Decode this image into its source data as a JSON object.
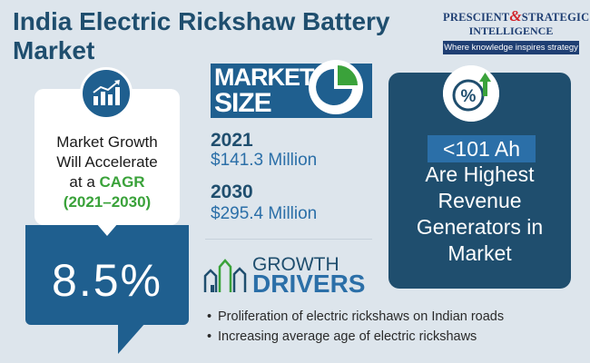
{
  "title": "India Electric Rickshaw Battery Market",
  "logo": {
    "line1_a": "PRESCIENT",
    "line1_amp": "&",
    "line1_b": "STRATEGIC",
    "line2": "INTELLIGENCE",
    "tagline": "Where knowledge inspires strategy"
  },
  "cagr": {
    "icon": "rising-chart-icon",
    "text_line1": "Market Growth",
    "text_line2": "Will Accelerate",
    "text_line3_prefix": "at a",
    "text_line3_highlight": "CAGR",
    "period": "(2021–2030)",
    "value": "8.5%"
  },
  "market_size": {
    "label_line1": "MARKET",
    "label_line2": "SIZE",
    "icon": "pie-chart-icon",
    "entries": [
      {
        "year": "2021",
        "value": "$141.3 Million"
      },
      {
        "year": "2030",
        "value": "$295.4 Million"
      }
    ]
  },
  "growth_drivers": {
    "icon": "growth-arrows-icon",
    "label_line1": "GROWTH",
    "label_line2": "DRIVERS",
    "items": [
      "Proliferation of electric rickshaws on Indian roads",
      "Increasing average age of electric rickshaws"
    ]
  },
  "highlight": {
    "icon": "percent-up-icon",
    "value": "<101 Ah",
    "text_line1": "Are Highest",
    "text_line2": "Revenue",
    "text_line3": "Generators in",
    "text_line4": "Market"
  },
  "colors": {
    "background": "#dde5ec",
    "navy": "#1f4e6e",
    "blue": "#2b6fa8",
    "green": "#3aa23a",
    "accent_red": "#d2232a"
  }
}
